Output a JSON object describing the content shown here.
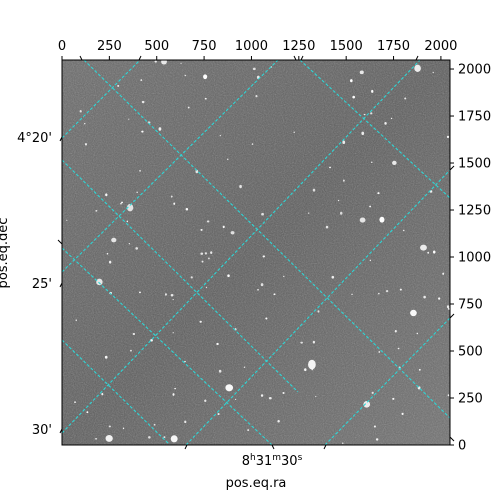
{
  "chart_data": {
    "type": "image-wcs",
    "xlabel": "pos.eq.ra",
    "ylabel": "pos.eq.dec",
    "pixel_x_axis": {
      "ticks": [
        0,
        250,
        500,
        750,
        1000,
        1250,
        1500,
        1750,
        2000
      ],
      "range": [
        0,
        2048
      ]
    },
    "pixel_y_axis": {
      "ticks": [
        0,
        250,
        500,
        750,
        1000,
        1250,
        1500,
        1750,
        2000
      ],
      "range": [
        0,
        2048
      ]
    },
    "ra_ticks": [
      {
        "h": "8",
        "m": "31",
        "s": "30"
      }
    ],
    "dec_ticks": [
      "4°20'",
      "25'",
      "30'"
    ],
    "grid": true,
    "grid_color": "#2ed6d6",
    "image_colormap": "gray"
  }
}
